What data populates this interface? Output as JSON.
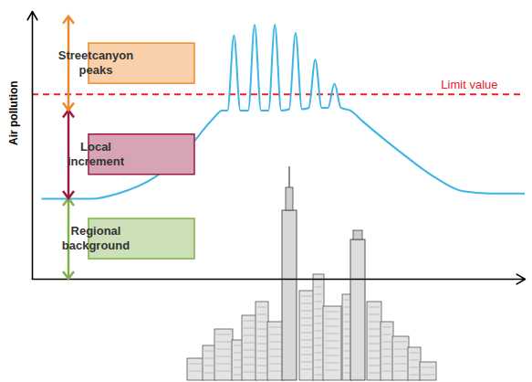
{
  "chart_data": {
    "type": "line",
    "y_label": "Air pollution",
    "color": "#3db5e6",
    "xlim": [
      0,
      100
    ],
    "ylim": [
      0,
      100
    ],
    "xticks": [],
    "yticks": [],
    "tick_labels": false,
    "grid": false,
    "x": [
      2,
      12,
      17.4,
      24.8,
      31.2,
      36.7,
      38.5,
      39.6,
      40.9,
      42.2,
      43.8,
      45.1,
      46.4,
      47.9,
      49.2,
      50.5,
      52.1,
      53.4,
      54.7,
      56.1,
      57.4,
      58.7,
      60,
      61.3,
      62.6,
      64.5,
      67,
      74.3,
      81.7,
      87,
      92.7,
      100
    ],
    "values": [
      30,
      30,
      32,
      38,
      48,
      60,
      63,
      63,
      91,
      63,
      63,
      95,
      63,
      63,
      95,
      63,
      63.5,
      92,
      63.5,
      64,
      82,
      64,
      64,
      73,
      64,
      63,
      59,
      48,
      38,
      33,
      32,
      32
    ],
    "limit": {
      "value": 69,
      "label": "Limit value",
      "color": "#e8202a"
    },
    "bands": [
      {
        "label": "Regional background",
        "from": 0,
        "to": 30,
        "color": "#7fb04a"
      },
      {
        "label": "Local increment",
        "from": 30,
        "to": 63,
        "color": "#9b1b43"
      },
      {
        "label": "Streetcanyon peaks",
        "from": 63,
        "to": 98,
        "color": "#ef8a2a"
      }
    ]
  }
}
